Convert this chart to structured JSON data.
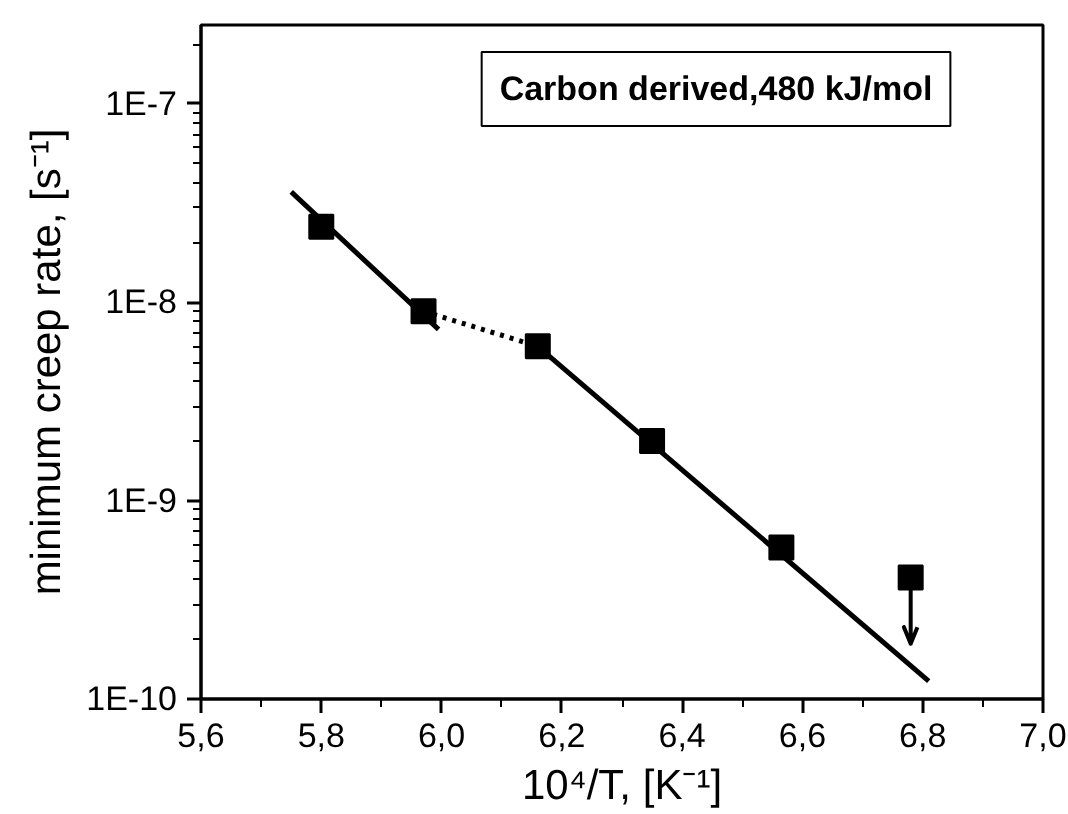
{
  "chart_data": {
    "type": "scatter",
    "xlabel": "10⁴/T, [K⁻¹]",
    "ylabel": "minimum creep rate, [s⁻¹]",
    "annotations": [
      "Carbon derived,480 kJ/mol"
    ],
    "log": "y",
    "grid": false,
    "xlim": [
      5.6,
      7.0
    ],
    "ylim": [
      1e-10,
      2.5e-07
    ],
    "xticks": [
      {
        "value": 5.6,
        "label": "5,6"
      },
      {
        "value": 5.8,
        "label": "5,8"
      },
      {
        "value": 6.0,
        "label": "6,0"
      },
      {
        "value": 6.2,
        "label": "6,2"
      },
      {
        "value": 6.4,
        "label": "6,4"
      },
      {
        "value": 6.6,
        "label": "6,6"
      },
      {
        "value": 6.8,
        "label": "6,8"
      },
      {
        "value": 7.0,
        "label": "7,0"
      }
    ],
    "yticks": [
      {
        "value": 1e-10,
        "label": "1E-10"
      },
      {
        "value": 1e-09,
        "label": "1E-9"
      },
      {
        "value": 1e-08,
        "label": "1E-8"
      },
      {
        "value": 1e-07,
        "label": "1E-7"
      }
    ],
    "series": [
      {
        "type": "line",
        "color": "#000000",
        "line_style": "solid",
        "x": [
          5.75,
          5.995
        ],
        "values": [
          3.6e-08,
          7.3e-09
        ]
      },
      {
        "type": "line",
        "color": "#000000",
        "line_style": "dotted",
        "x": [
          5.97,
          6.16
        ],
        "values": [
          9e-09,
          6e-09
        ]
      },
      {
        "type": "line",
        "color": "#000000",
        "line_style": "solid",
        "x": [
          6.16,
          6.81
        ],
        "values": [
          6e-09,
          1.23e-10
        ]
      },
      {
        "color": "#000000",
        "marker": "square",
        "x": [
          5.8,
          5.97,
          6.16,
          6.35,
          6.565,
          6.78
        ],
        "values": [
          2.4e-08,
          9e-09,
          6e-09,
          2e-09,
          5.8e-10,
          4.1e-10
        ],
        "errors": [
          null,
          null,
          null,
          null,
          null,
          [
            1.9e-10,
            4.1e-10
          ]
        ]
      }
    ]
  }
}
